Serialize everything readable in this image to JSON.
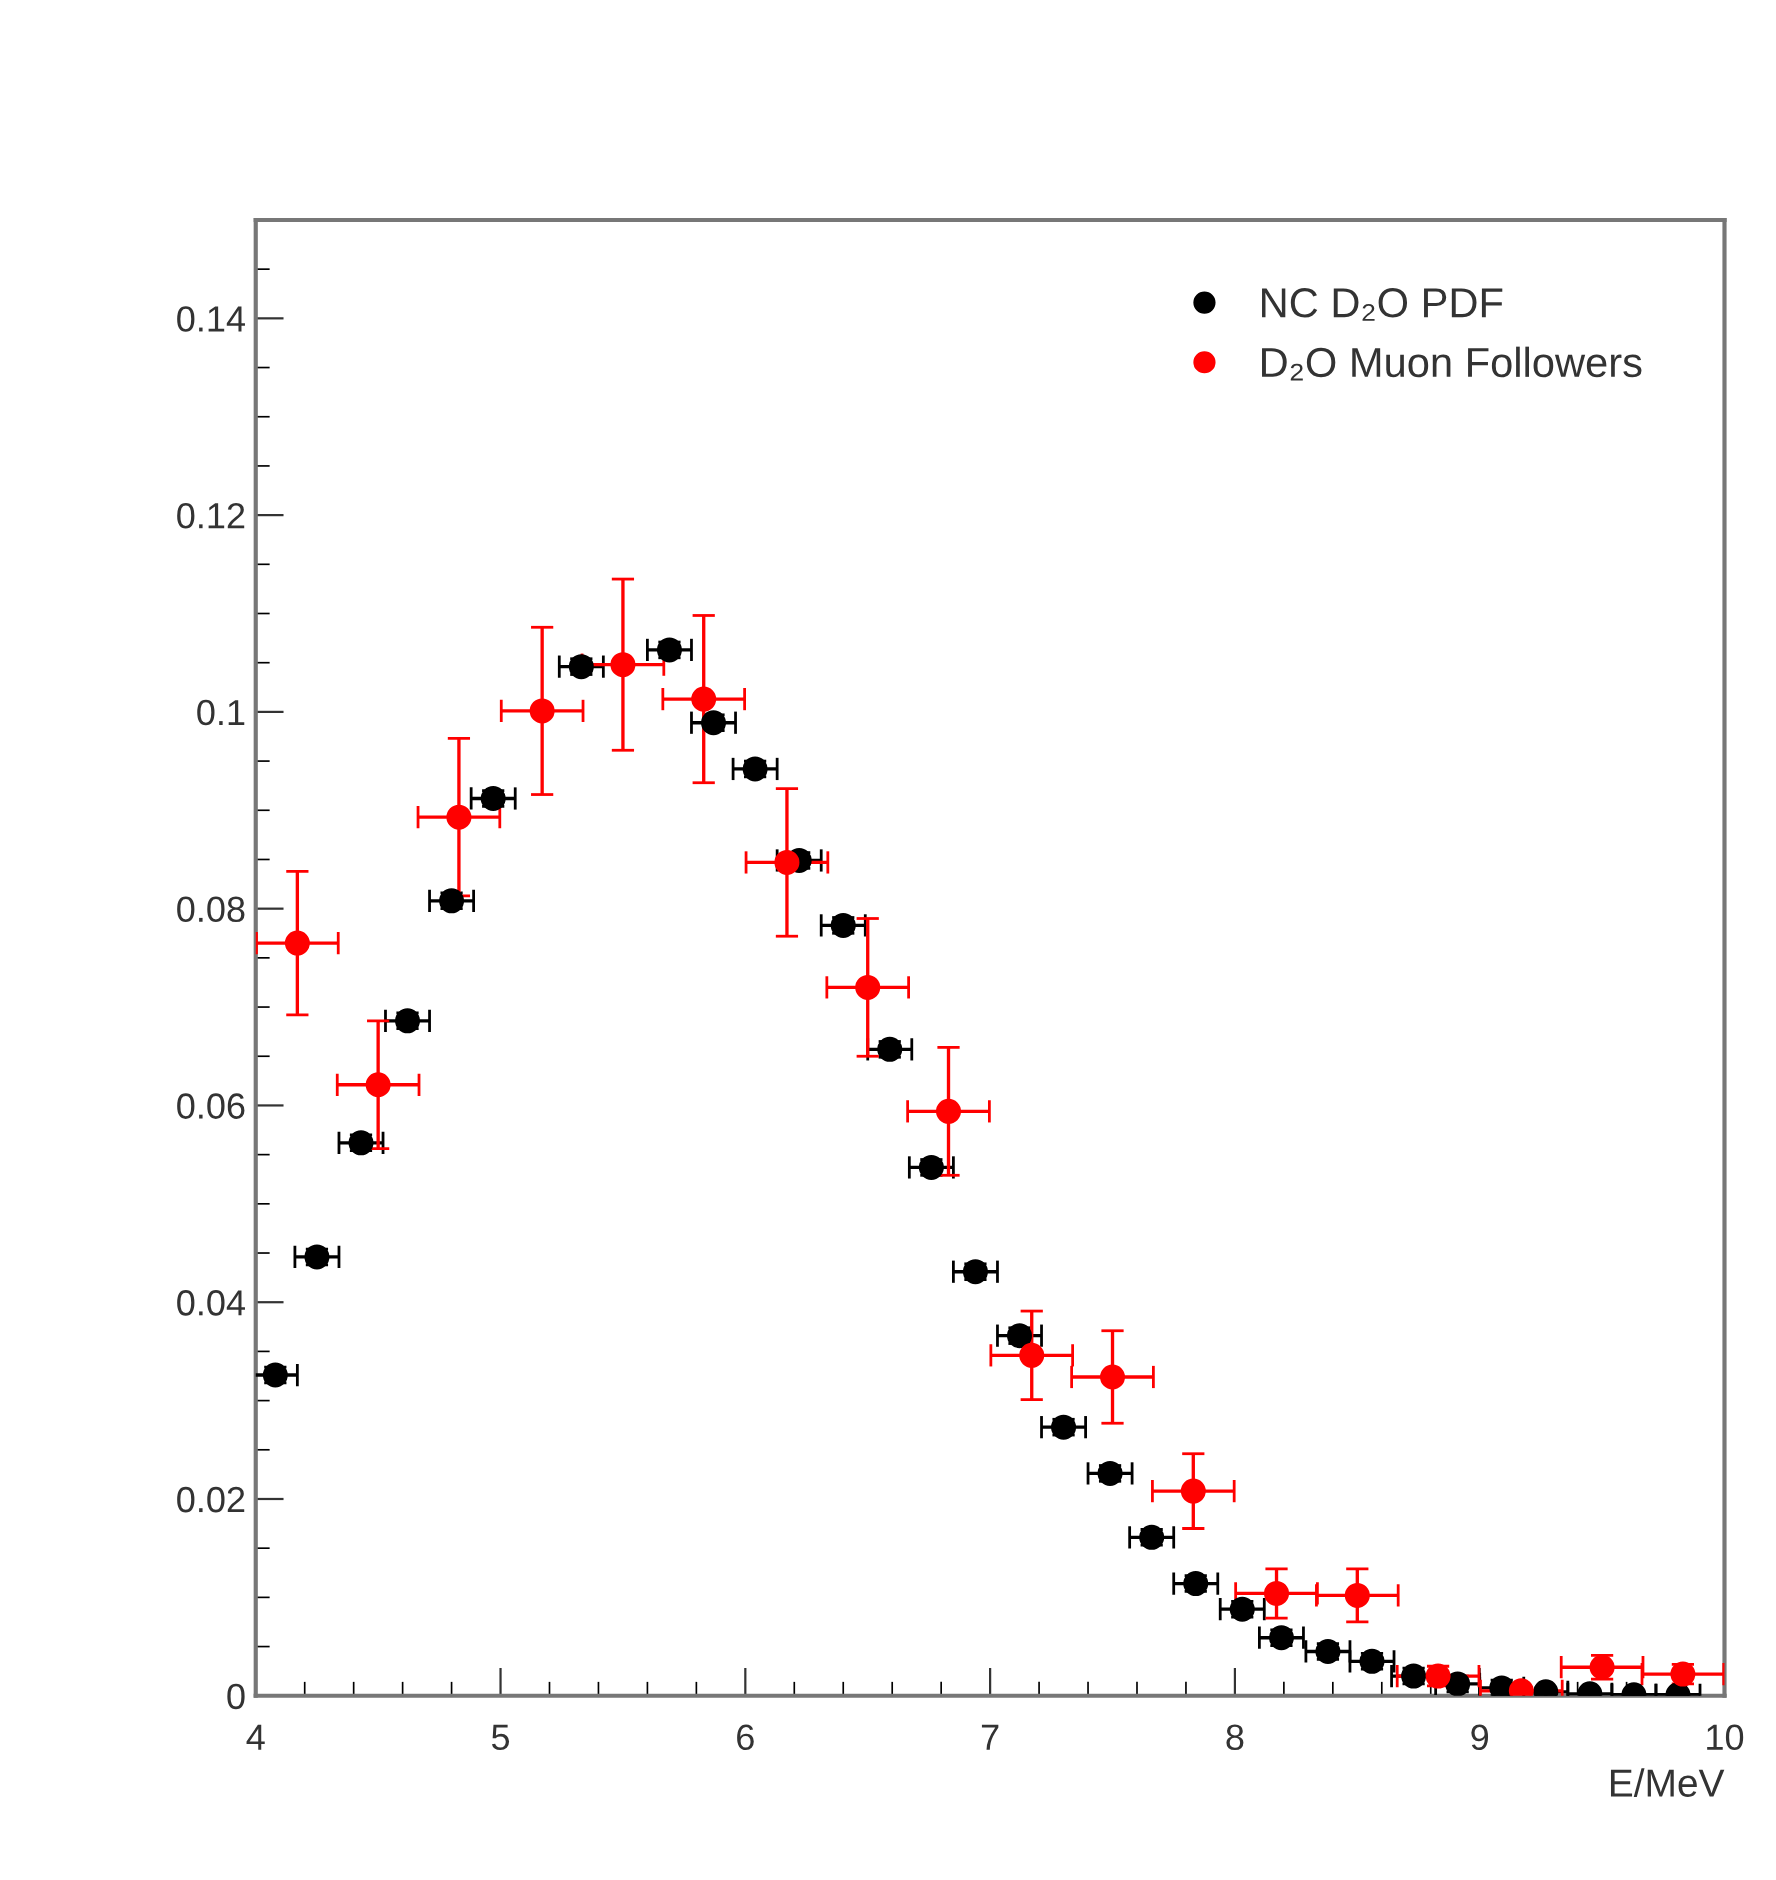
{
  "chart_data": {
    "type": "scatter",
    "xlabel": "E/MeV",
    "xlim": [
      4,
      10
    ],
    "xticks": [
      4,
      5,
      6,
      7,
      8,
      9,
      10
    ],
    "ylim": [
      0,
      0.15
    ],
    "yticks": [
      0,
      0.02,
      0.04,
      0.06,
      0.08,
      0.1,
      0.12,
      0.14
    ],
    "grid": false,
    "legend": "top right",
    "marker": "circle",
    "series": [
      {
        "name": "NC D₂O PDF",
        "color": "#000000",
        "x": [
          4.08,
          4.25,
          4.43,
          4.62,
          4.8,
          4.97,
          5.16,
          5.33,
          5.51,
          5.69,
          5.87,
          6.04,
          6.22,
          6.4,
          6.59,
          6.76,
          6.94,
          7.12,
          7.3,
          7.49,
          7.66,
          7.84,
          8.03,
          8.19,
          8.38,
          8.56,
          8.73,
          8.91,
          9.09,
          9.27,
          9.45,
          9.63,
          9.81
        ],
        "values": [
          0.0326,
          0.0446,
          0.0562,
          0.0686,
          0.0808,
          0.0912,
          null,
          0.1046,
          null,
          0.1063,
          0.0989,
          0.0942,
          0.0849,
          0.0783,
          0.0657,
          0.0537,
          0.0431,
          0.0366,
          0.0273,
          0.0226,
          0.0161,
          0.0114,
          0.0088,
          0.0059,
          0.0045,
          0.0035,
          0.002,
          0.0012,
          0.0008,
          0.0004,
          0.0002,
          0.0001,
          0.0001
        ],
        "errors": [
          0.0008,
          0.0008,
          0.0008,
          0.0008,
          0.0008,
          0.0008,
          null,
          0.0008,
          null,
          0.0008,
          0.0008,
          0.0008,
          0.0008,
          0.0008,
          0.0008,
          0.0008,
          0.0008,
          0.0008,
          0.0008,
          0.0008,
          0.0008,
          0.0008,
          0.0008,
          0.0008,
          0.0008,
          0.0008,
          0.0008,
          0.0008,
          0.0008,
          0.0004,
          0.0002,
          0.0001,
          0.0001
        ],
        "xerrors": [
          0.09,
          0.09,
          0.09,
          0.09,
          0.09,
          0.09,
          null,
          0.09,
          null,
          0.09,
          0.09,
          0.09,
          0.09,
          0.09,
          0.09,
          0.09,
          0.09,
          0.09,
          0.09,
          0.09,
          0.09,
          0.09,
          0.09,
          0.09,
          0.09,
          0.09,
          0.09,
          0.09,
          0.09,
          0.09,
          0.09,
          0.09,
          0.09
        ]
      },
      {
        "name": "D₂O Muon Followers",
        "color": "#ff0000",
        "x": [
          4.17,
          4.5,
          4.83,
          5.17,
          5.5,
          5.83,
          6.17,
          6.5,
          6.83,
          7.17,
          7.5,
          7.83,
          8.17,
          8.5,
          8.83,
          9.17,
          9.5,
          9.83
        ],
        "values": [
          0.0765,
          0.0621,
          0.0893,
          0.1001,
          0.1048,
          0.1013,
          0.0847,
          0.072,
          0.0594,
          0.0346,
          0.0324,
          0.0208,
          0.0104,
          0.0102,
          0.002,
          0.0005,
          0.0029,
          0.0022
        ],
        "errors": [
          0.0073,
          0.0065,
          0.008,
          0.0085,
          0.0087,
          0.0085,
          0.0075,
          0.007,
          0.0065,
          0.0045,
          0.0047,
          0.0038,
          0.0025,
          0.0027,
          0.001,
          null,
          0.0012,
          0.001
        ],
        "xerrors": [
          0.167,
          0.167,
          0.167,
          0.167,
          0.167,
          0.167,
          0.167,
          0.167,
          0.167,
          0.167,
          0.167,
          0.167,
          0.167,
          0.167,
          0.167,
          0.167,
          0.167,
          0.167
        ]
      }
    ]
  }
}
